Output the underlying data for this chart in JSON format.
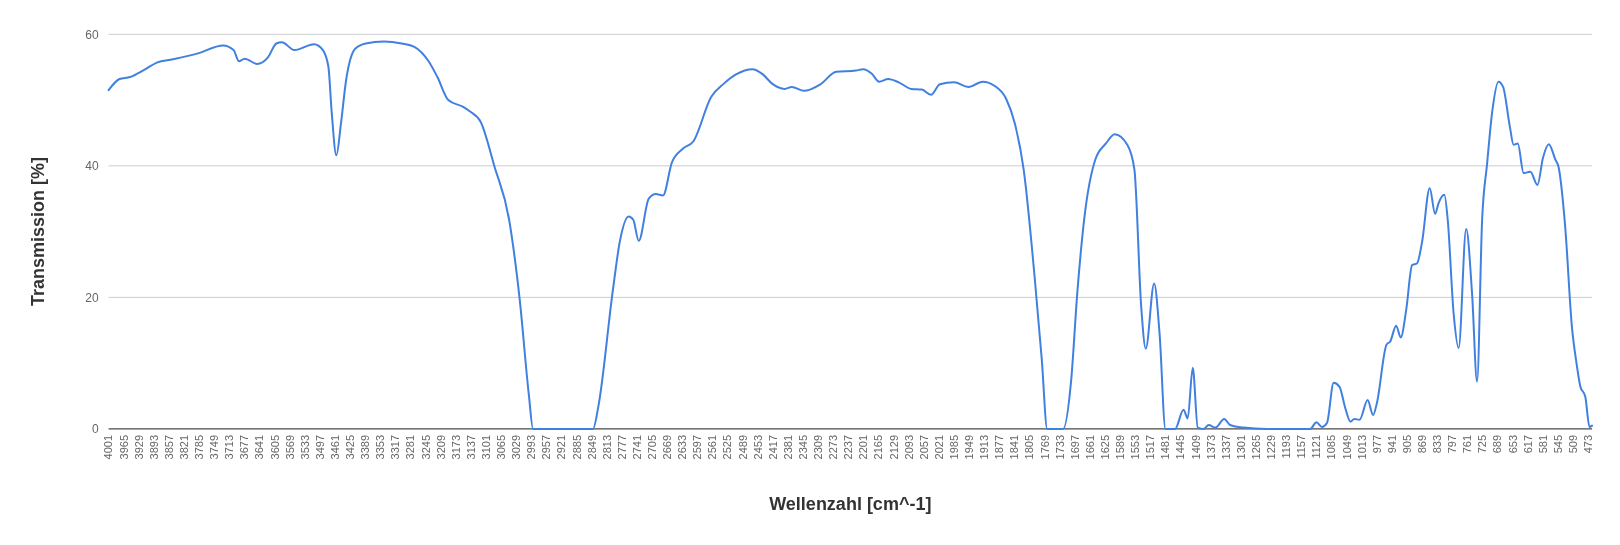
{
  "chart_data": {
    "type": "line",
    "xlabel": "Wellenzahl [cm^-1]",
    "ylabel": "Transmission [%]",
    "grid": "y",
    "marker": "none",
    "xlim": [
      4001,
      464
    ],
    "ylim": [
      0,
      60
    ],
    "yticks": [
      0,
      20,
      40,
      60
    ],
    "xticks": [
      4001,
      3965,
      3929,
      3893,
      3857,
      3821,
      3785,
      3749,
      3713,
      3677,
      3641,
      3605,
      3569,
      3533,
      3497,
      3461,
      3425,
      3389,
      3353,
      3317,
      3281,
      3245,
      3209,
      3173,
      3137,
      3101,
      3065,
      3029,
      2993,
      2957,
      2921,
      2885,
      2849,
      2813,
      2777,
      2741,
      2705,
      2669,
      2633,
      2597,
      2561,
      2525,
      2489,
      2453,
      2417,
      2381,
      2345,
      2309,
      2273,
      2237,
      2201,
      2165,
      2129,
      2093,
      2057,
      2021,
      1985,
      1949,
      1913,
      1877,
      1841,
      1805,
      1769,
      1733,
      1697,
      1661,
      1625,
      1589,
      1553,
      1517,
      1481,
      1445,
      1409,
      1373,
      1337,
      1301,
      1265,
      1229,
      1193,
      1157,
      1121,
      1085,
      1049,
      1013,
      977,
      941,
      905,
      869,
      833,
      797,
      761,
      725,
      689,
      653,
      617,
      581,
      545,
      509,
      473
    ],
    "x": [
      4001,
      3975,
      3950,
      3916,
      3886,
      3848,
      3788,
      3728,
      3703,
      3690,
      3677,
      3647,
      3621,
      3601,
      3588,
      3558,
      3511,
      3490,
      3477,
      3469,
      3458,
      3447,
      3435,
      3413,
      3388,
      3345,
      3302,
      3272,
      3238,
      3217,
      3191,
      3157,
      3140,
      3114,
      3081,
      3046,
      3021,
      2999,
      2989,
      2846,
      2833,
      2799,
      2782,
      2761,
      2750,
      2737,
      2713,
      2696,
      2679,
      2658,
      2632,
      2607,
      2564,
      2534,
      2505,
      2466,
      2441,
      2419,
      2389,
      2372,
      2343,
      2304,
      2266,
      2219,
      2202,
      2181,
      2164,
      2142,
      2117,
      2087,
      2062,
      2040,
      2019,
      1985,
      1951,
      1917,
      1887,
      1861,
      1840,
      1819,
      1793,
      1776,
      1763,
      1725,
      1706,
      1691,
      1674,
      1648,
      1623,
      1602,
      1572,
      1555,
      1539,
      1528,
      1508,
      1495,
      1481,
      1458,
      1438,
      1428,
      1416,
      1404,
      1390,
      1378,
      1362,
      1341,
      1327,
      1295,
      1239,
      1136,
      1121,
      1108,
      1096,
      1080,
      1066,
      1052,
      1040,
      1031,
      1018,
      999,
      986,
      977,
      954,
      945,
      931,
      920,
      907,
      893,
      881,
      869,
      851,
      838,
      830,
      816,
      808,
      794,
      782,
      764,
      750,
      738,
      726,
      714,
      702,
      687,
      676,
      660,
      651,
      641,
      627,
      611,
      594,
      581,
      567,
      551,
      544,
      528,
      512,
      501,
      492,
      480,
      470,
      464
    ],
    "series": [
      {
        "color": "#4180e0",
        "line_style": "solid",
        "values": [
          51.5,
          53.2,
          53.5,
          54.6,
          55.7,
          56.2,
          57.1,
          58.3,
          57.6,
          55.9,
          56.3,
          55.5,
          56.5,
          58.6,
          58.8,
          57.6,
          58.5,
          57.6,
          55.1,
          48.1,
          41.6,
          46.4,
          52.9,
          57.8,
          58.6,
          58.9,
          58.6,
          58.1,
          55.9,
          53.5,
          50.0,
          49.0,
          48.3,
          46.7,
          39.9,
          31.8,
          19.8,
          5.2,
          0,
          0,
          3.5,
          20.9,
          28.5,
          32.3,
          31.8,
          28.6,
          35.0,
          35.7,
          35.5,
          40.5,
          42.6,
          43.7,
          50.5,
          52.5,
          53.9,
          54.7,
          53.9,
          52.5,
          51.7,
          52.0,
          51.4,
          52.4,
          54.3,
          54.5,
          54.7,
          54.0,
          52.8,
          53.2,
          52.7,
          51.7,
          51.6,
          50.8,
          52.4,
          52.7,
          52.0,
          52.8,
          52.1,
          50.2,
          46.4,
          39.4,
          23.1,
          10.6,
          0,
          0,
          7.3,
          20.9,
          32.3,
          41.0,
          43.4,
          44.8,
          43.2,
          39.4,
          18.7,
          12.2,
          22.1,
          14.4,
          0,
          0,
          2.9,
          1.6,
          9.3,
          0.2,
          0,
          0.6,
          0.2,
          1.5,
          0.6,
          0.2,
          0,
          0,
          1.0,
          0.3,
          0.9,
          7.0,
          6.4,
          3.1,
          1.1,
          1.5,
          1.4,
          4.4,
          2.1,
          3.9,
          12.8,
          13.3,
          15.7,
          13.9,
          18.1,
          24.9,
          25.2,
          28.5,
          36.6,
          32.7,
          34.3,
          35.6,
          31.8,
          17.6,
          12.3,
          30.4,
          20.6,
          7.2,
          31.8,
          40.4,
          48.2,
          52.8,
          52.0,
          46.0,
          43.2,
          43.4,
          38.9,
          39.1,
          37.1,
          41.2,
          43.3,
          40.9,
          39.9,
          30.8,
          15.6,
          10.0,
          6.5,
          4.9,
          0.3,
          0.5
        ]
      }
    ]
  }
}
